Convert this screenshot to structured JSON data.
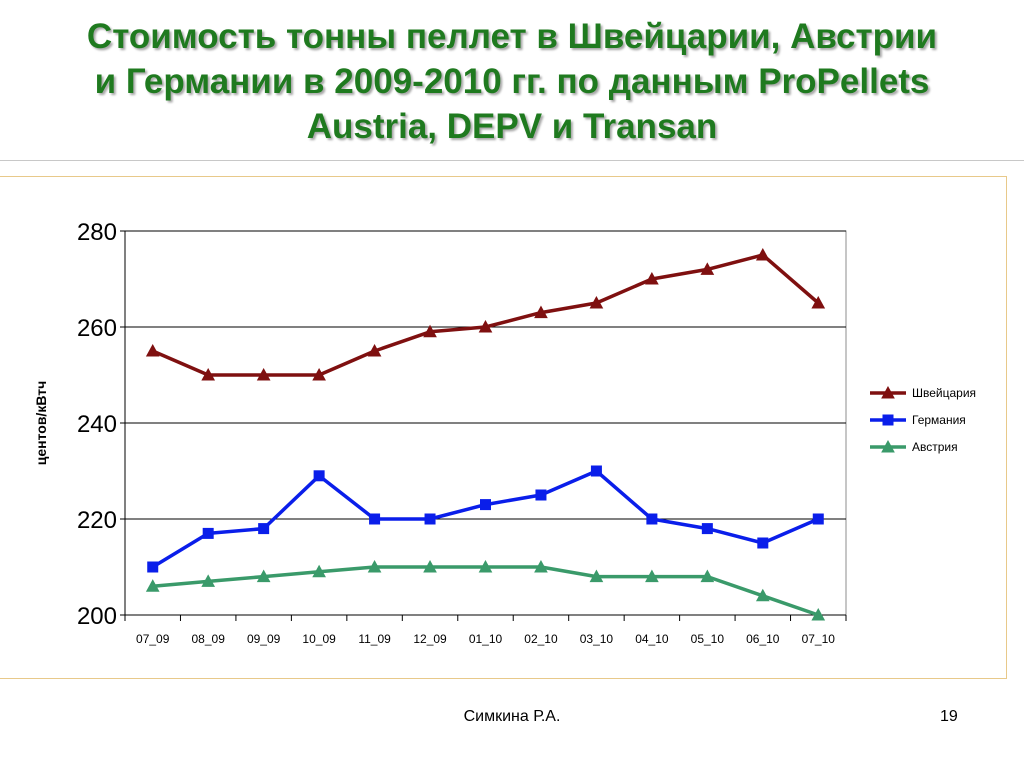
{
  "slide": {
    "title_lines": [
      "Стоимость тонны пеллет в Швейцарии, Австрии",
      "и Германии в 2009-2010 гг. по данным ProPellets",
      "Austria, DEPV и Transan"
    ],
    "author": "Симкина Р.А.",
    "page_number": "19"
  },
  "chart_data": {
    "type": "line",
    "title": "",
    "xlabel": "",
    "ylabel": "центов/кВтч",
    "categories": [
      "07_09",
      "08_09",
      "09_09",
      "10_09",
      "11_09",
      "12_09",
      "01_10",
      "02_10",
      "03_10",
      "04_10",
      "05_10",
      "06_10",
      "07_10"
    ],
    "ylim": [
      200,
      280
    ],
    "yticks": [
      200,
      220,
      240,
      260,
      280
    ],
    "grid": true,
    "legend_position": "right",
    "series": [
      {
        "name": "Швейцария",
        "color": "#7f1010",
        "marker": "triangle",
        "values": [
          255,
          250,
          250,
          250,
          255,
          259,
          260,
          263,
          265,
          270,
          272,
          275,
          265
        ]
      },
      {
        "name": "Германия",
        "color": "#0a1eea",
        "marker": "square",
        "values": [
          210,
          217,
          218,
          229,
          220,
          220,
          223,
          225,
          230,
          220,
          218,
          215,
          220
        ]
      },
      {
        "name": "Австрия",
        "color": "#3a9a6a",
        "marker": "triangle",
        "values": [
          206,
          207,
          208,
          209,
          210,
          210,
          210,
          210,
          208,
          208,
          208,
          204,
          200
        ]
      }
    ]
  }
}
